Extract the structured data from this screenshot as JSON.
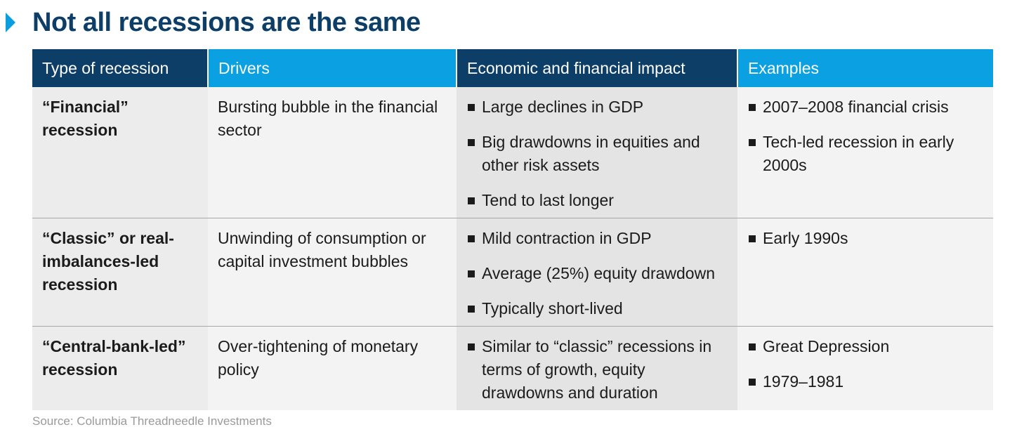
{
  "title": "Not all recessions are the same",
  "columns": [
    "Type of recession",
    "Drivers",
    "Economic and financial impact",
    "Examples"
  ],
  "rows": [
    {
      "type": "“Financial” recession",
      "drivers": "Bursting bubble in the financial sector",
      "impact": [
        "Large declines in GDP",
        "Big drawdowns in equities and other risk assets",
        "Tend to last longer"
      ],
      "examples": [
        "2007–2008 financial crisis",
        "Tech-led recession in early 2000s"
      ]
    },
    {
      "type": "“Classic” or real-imbalances-led recession",
      "drivers": "Unwinding of consumption or capital investment bubbles",
      "impact": [
        "Mild contraction in GDP",
        "Average (25%) equity drawdown",
        "Typically short-lived"
      ],
      "examples": [
        "Early 1990s"
      ]
    },
    {
      "type": "“Central-bank-led” recession",
      "drivers": "Over-tightening of monetary policy",
      "impact": [
        "Similar to “classic” recessions in terms of growth, equity drawdowns and duration"
      ],
      "examples": [
        "Great Depression",
        "1979–1981"
      ]
    }
  ],
  "source": "Source: Columbia Threadneedle Investments",
  "colors": {
    "navy": "#0d3e68",
    "blue": "#0aa0e2"
  }
}
